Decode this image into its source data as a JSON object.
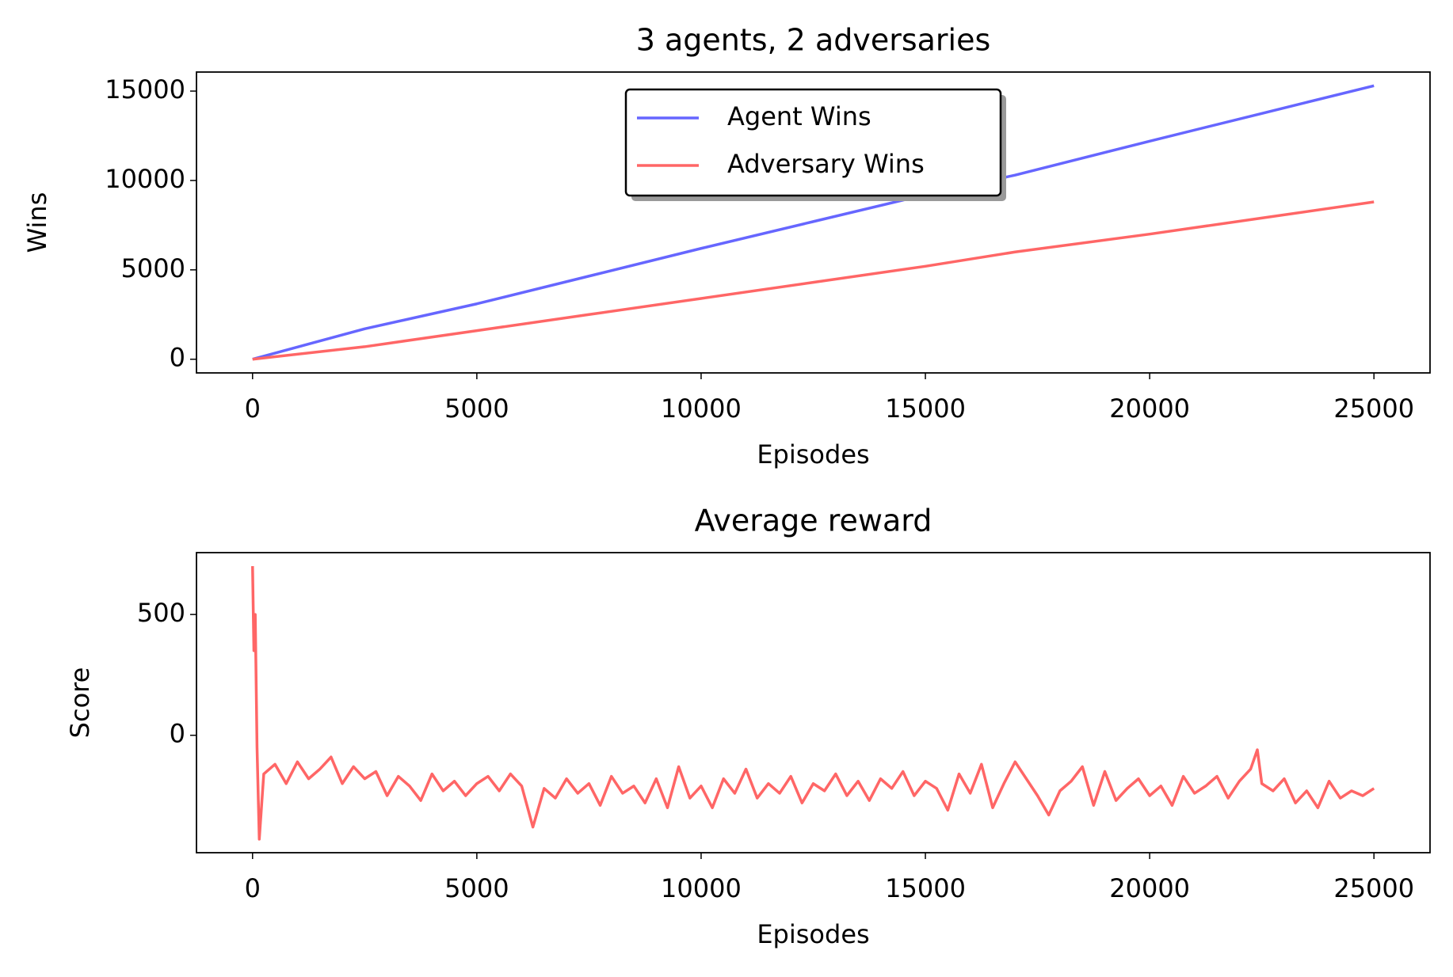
{
  "chart_data": [
    {
      "type": "line",
      "title": "3 agents, 2 adversaries",
      "x_label": "Episodes",
      "y_label": "Wins",
      "x": [
        0,
        2500,
        5000,
        7500,
        10000,
        12500,
        15000,
        17000,
        20000,
        22500,
        25000
      ],
      "series": [
        {
          "name": "Agent Wins",
          "color": "#6666ff",
          "values": [
            0,
            1700,
            3100,
            4650,
            6200,
            7700,
            9200,
            10300,
            12200,
            13750,
            15300
          ]
        },
        {
          "name": "Adversary Wins",
          "color": "#ff6666",
          "values": [
            0,
            700,
            1600,
            2500,
            3400,
            4300,
            5200,
            6000,
            7000,
            7900,
            8800
          ]
        }
      ],
      "xlim": [
        -1250,
        26250
      ],
      "ylim": [
        -765,
        16065
      ],
      "xticks": [
        0,
        5000,
        10000,
        15000,
        20000,
        25000
      ],
      "yticks": [
        0,
        5000,
        10000,
        15000
      ],
      "legend": "upper center"
    },
    {
      "type": "line",
      "title": "Average reward",
      "x_label": "Episodes",
      "y_label": "Score",
      "color": "#ff6666",
      "x": [
        0,
        30,
        60,
        100,
        150,
        250,
        500,
        750,
        1000,
        1250,
        1500,
        1750,
        2000,
        2250,
        2500,
        2750,
        3000,
        3250,
        3500,
        3750,
        4000,
        4250,
        4500,
        4750,
        5000,
        5250,
        5500,
        5750,
        6000,
        6250,
        6500,
        6750,
        7000,
        7250,
        7500,
        7750,
        8000,
        8250,
        8500,
        8750,
        9000,
        9250,
        9500,
        9750,
        10000,
        10250,
        10500,
        10750,
        11000,
        11250,
        11500,
        11750,
        12000,
        12250,
        12500,
        12750,
        13000,
        13250,
        13500,
        13750,
        14000,
        14250,
        14500,
        14750,
        15000,
        15250,
        15500,
        15750,
        16000,
        16250,
        16500,
        16750,
        17000,
        17250,
        17500,
        17750,
        18000,
        18250,
        18500,
        18750,
        19000,
        19250,
        19500,
        19750,
        20000,
        20250,
        20500,
        20750,
        21000,
        21250,
        21500,
        21750,
        22000,
        22250,
        22400,
        22500,
        22750,
        23000,
        23250,
        23500,
        23750,
        24000,
        24250,
        24500,
        24750,
        25000
      ],
      "values": [
        700,
        350,
        500,
        -50,
        -430,
        -160,
        -120,
        -200,
        -110,
        -180,
        -140,
        -90,
        -200,
        -130,
        -180,
        -150,
        -250,
        -170,
        -210,
        -270,
        -160,
        -230,
        -190,
        -250,
        -200,
        -170,
        -230,
        -160,
        -210,
        -380,
        -220,
        -260,
        -180,
        -240,
        -200,
        -290,
        -170,
        -240,
        -210,
        -280,
        -180,
        -300,
        -130,
        -260,
        -210,
        -300,
        -180,
        -240,
        -140,
        -260,
        -200,
        -240,
        -170,
        -280,
        -200,
        -230,
        -160,
        -250,
        -190,
        -270,
        -180,
        -220,
        -150,
        -250,
        -190,
        -220,
        -310,
        -160,
        -240,
        -120,
        -300,
        -200,
        -110,
        -180,
        -250,
        -330,
        -230,
        -190,
        -130,
        -290,
        -150,
        -270,
        -220,
        -180,
        -250,
        -210,
        -290,
        -170,
        -240,
        -210,
        -170,
        -260,
        -190,
        -140,
        -60,
        -200,
        -230,
        -180,
        -280,
        -230,
        -300,
        -190,
        -260,
        -230,
        -250,
        -220
      ],
      "xlim": [
        -1250,
        26250
      ],
      "ylim": [
        -486,
        756
      ],
      "xticks": [
        0,
        5000,
        10000,
        15000,
        20000,
        25000
      ],
      "yticks": [
        0,
        500
      ]
    }
  ]
}
